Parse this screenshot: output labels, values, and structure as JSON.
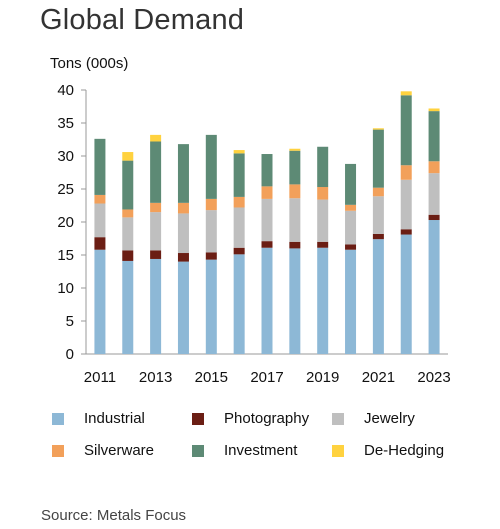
{
  "title": "Global Demand",
  "source": "Source: Metals Focus",
  "chart_data": {
    "type": "bar",
    "stacked": true,
    "title": "Global Demand",
    "ylabel": "Tons (000s)",
    "xlabel": "",
    "ylim": [
      0,
      40
    ],
    "yticks": [
      0,
      5,
      10,
      15,
      20,
      25,
      30,
      35,
      40
    ],
    "categories": [
      "2011",
      "2012",
      "2013",
      "2014",
      "2015",
      "2016",
      "2017",
      "2018",
      "2019",
      "2020",
      "2021",
      "2022",
      "2023"
    ],
    "xtick_labels": [
      "2011",
      "",
      "2013",
      "",
      "2015",
      "",
      "2017",
      "",
      "2019",
      "",
      "2021",
      "",
      "2023"
    ],
    "grid": false,
    "legend_position": "bottom",
    "series": [
      {
        "name": "Industrial",
        "color": "#8db8d6",
        "values": [
          15.8,
          14.1,
          14.4,
          14.0,
          14.3,
          15.1,
          16.1,
          16.0,
          16.1,
          15.8,
          17.4,
          18.1,
          20.3
        ]
      },
      {
        "name": "Photography",
        "color": "#6b1e14",
        "values": [
          1.9,
          1.6,
          1.3,
          1.3,
          1.1,
          1.0,
          1.0,
          1.0,
          0.9,
          0.8,
          0.8,
          0.8,
          0.8
        ]
      },
      {
        "name": "Jewelry",
        "color": "#bfbfbf",
        "values": [
          5.1,
          5.0,
          5.8,
          6.0,
          6.4,
          6.1,
          6.4,
          6.6,
          6.4,
          5.1,
          5.7,
          7.5,
          6.3
        ]
      },
      {
        "name": "Silverware",
        "color": "#f2a05a",
        "values": [
          1.3,
          1.2,
          1.4,
          1.6,
          1.7,
          1.6,
          1.9,
          2.1,
          1.9,
          0.9,
          1.3,
          2.2,
          1.8
        ]
      },
      {
        "name": "Investment",
        "color": "#5d8a75",
        "values": [
          8.5,
          7.4,
          9.3,
          8.9,
          9.7,
          6.6,
          4.9,
          5.1,
          6.1,
          6.2,
          8.8,
          10.6,
          7.6
        ]
      },
      {
        "name": "De-Hedging",
        "color": "#ffd23f",
        "values": [
          0.0,
          1.3,
          1.0,
          0.0,
          0.0,
          0.5,
          0.0,
          0.3,
          0.0,
          0.0,
          0.2,
          0.6,
          0.4
        ]
      }
    ]
  }
}
